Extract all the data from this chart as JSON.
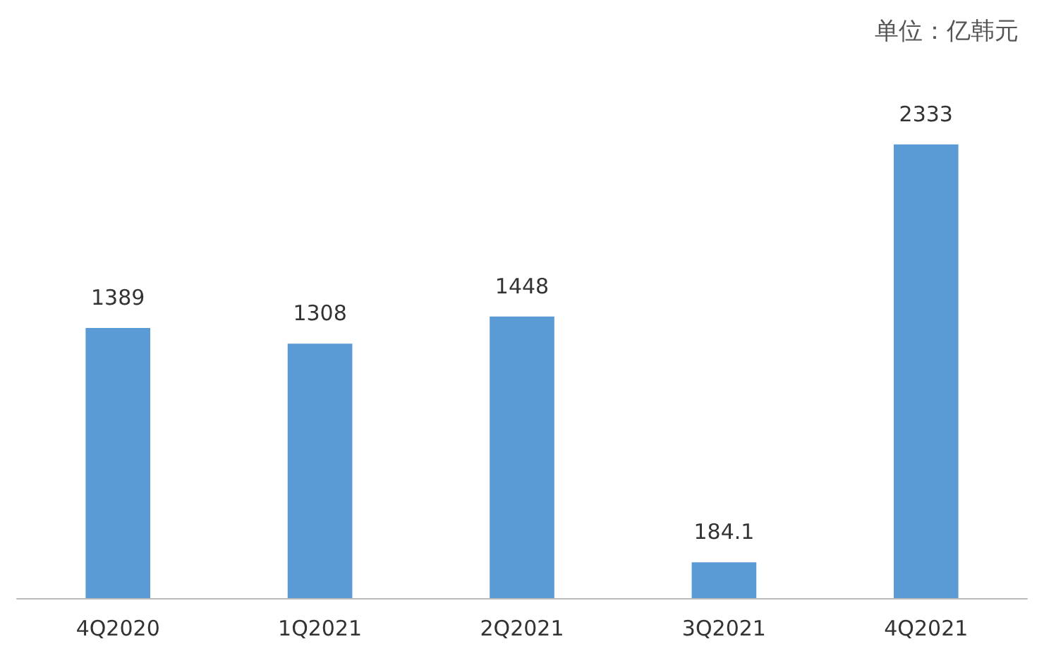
{
  "chart_data": {
    "type": "bar",
    "categories": [
      "4Q2020",
      "1Q2021",
      "2Q2021",
      "3Q2021",
      "4Q2021"
    ],
    "values": [
      1389,
      1308,
      1448,
      184.1,
      2333
    ],
    "color": "#5b9bd5",
    "data_labels": true,
    "annotations": [
      "单位：亿韩元"
    ]
  }
}
